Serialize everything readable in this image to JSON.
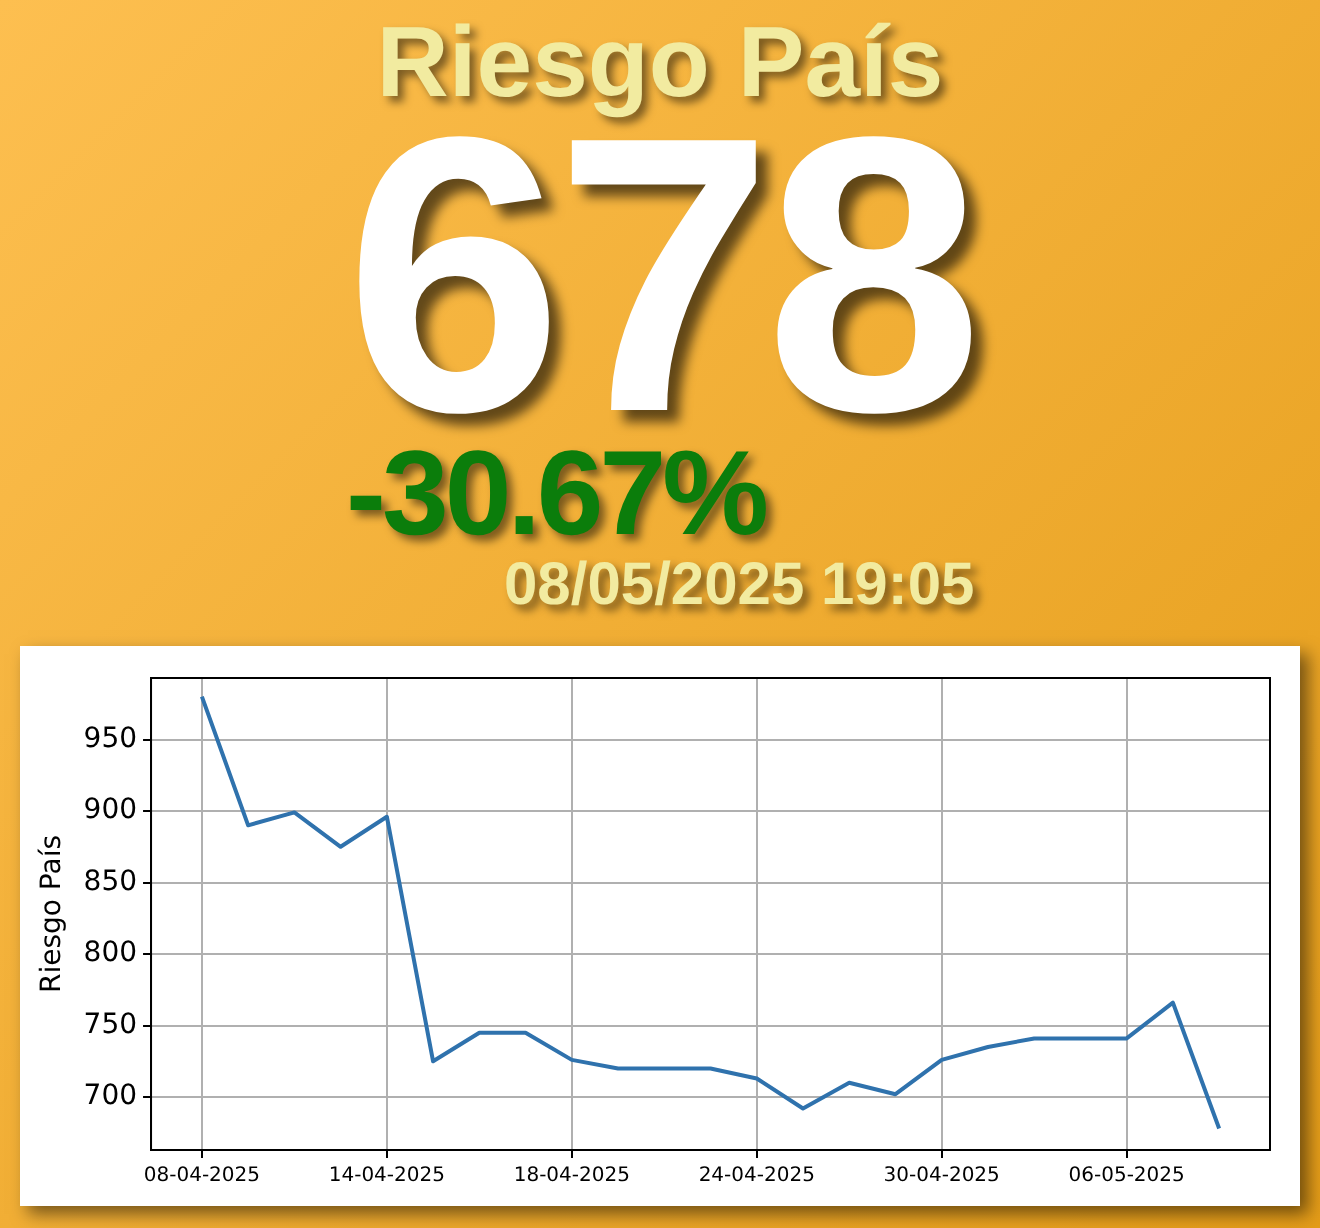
{
  "chart_data": {
    "type": "line",
    "title": "Riesgo País",
    "ylabel": "Riesgo País",
    "annotations": [
      "678",
      "-30.67%",
      "08/05/2025 19:05"
    ],
    "categories": [
      "08-04-2025",
      null,
      null,
      null,
      "14-04-2025",
      null,
      null,
      null,
      "18-04-2025",
      null,
      null,
      null,
      "24-04-2025",
      null,
      null,
      null,
      "30-04-2025",
      null,
      null,
      null,
      "06-05-2025",
      null,
      null
    ],
    "series": [
      {
        "color": "#2f72ad",
        "values": [
          980,
          890,
          899,
          875,
          896,
          725,
          745,
          745,
          726,
          720,
          720,
          720,
          713,
          692,
          710,
          702,
          726,
          735,
          741,
          741,
          741,
          766,
          678
        ]
      }
    ],
    "ylim": [
      663,
      993
    ],
    "yticks": [
      700,
      750,
      800,
      850,
      900,
      950
    ],
    "grid": true,
    "legend": false,
    "marker": "none",
    "line_style": "solid"
  }
}
